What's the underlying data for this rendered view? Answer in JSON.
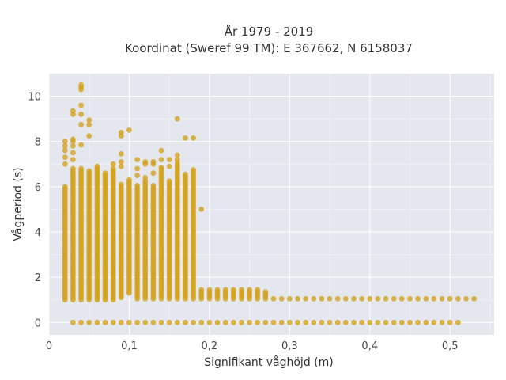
{
  "chart_data": {
    "type": "scatter",
    "title_line1": "År 1979 - 2019",
    "title_line2": "Koordinat (Sweref 99 TM): E 367662, N 6158037",
    "xlabel": "Signifikant våghöjd (m)",
    "ylabel": "Vågperiod (s)",
    "xlim": [
      0,
      0.555
    ],
    "ylim": [
      -0.55,
      11.0
    ],
    "grid": true,
    "x_ticks": [
      0,
      0.1,
      0.2,
      0.3,
      0.4,
      0.5
    ],
    "x_tick_labels": [
      "0",
      "0,1",
      "0,2",
      "0,3",
      "0,4",
      "0,5"
    ],
    "y_ticks": [
      0,
      2,
      4,
      6,
      8,
      10
    ],
    "y_tick_labels": [
      "0",
      "2",
      "4",
      "6",
      "8",
      "10"
    ],
    "marker_color": "#d4a017",
    "background_color": "#e5e7ef",
    "columns": [
      {
        "x": 0.02,
        "y_min": 1.0,
        "y_max": 6.0,
        "outliers": [
          7.0,
          7.3,
          7.6,
          7.8,
          8.0
        ]
      },
      {
        "x": 0.03,
        "y_min": 1.0,
        "y_max": 6.8,
        "outliers": [
          7.2,
          7.5,
          7.8,
          8.0,
          8.1,
          9.2,
          9.35
        ]
      },
      {
        "x": 0.04,
        "y_min": 1.0,
        "y_max": 6.8,
        "outliers": [
          7.85,
          8.75,
          9.2,
          9.6,
          10.3,
          10.4,
          10.5
        ]
      },
      {
        "x": 0.05,
        "y_min": 1.0,
        "y_max": 6.7,
        "outliers": [
          8.25,
          8.75,
          8.95
        ]
      },
      {
        "x": 0.06,
        "y_min": 1.0,
        "y_max": 6.9,
        "outliers": []
      },
      {
        "x": 0.07,
        "y_min": 1.0,
        "y_max": 6.6,
        "outliers": []
      },
      {
        "x": 0.08,
        "y_min": 1.0,
        "y_max": 6.8,
        "outliers": [
          7.0
        ]
      },
      {
        "x": 0.09,
        "y_min": 1.1,
        "y_max": 6.1,
        "outliers": [
          6.9,
          7.1,
          7.45,
          8.25,
          8.4
        ]
      },
      {
        "x": 0.1,
        "y_min": 1.3,
        "y_max": 6.3,
        "outliers": [
          8.5
        ]
      },
      {
        "x": 0.11,
        "y_min": 1.05,
        "y_max": 6.1,
        "outliers": [
          6.5,
          6.8,
          7.2
        ]
      },
      {
        "x": 0.12,
        "y_min": 1.05,
        "y_max": 6.2,
        "outliers": [
          6.4,
          7.0,
          7.1
        ]
      },
      {
        "x": 0.13,
        "y_min": 1.05,
        "y_max": 6.1,
        "outliers": [
          6.6,
          7.0,
          7.1
        ]
      },
      {
        "x": 0.14,
        "y_min": 1.05,
        "y_max": 6.8,
        "outliers": [
          7.2,
          7.6
        ]
      },
      {
        "x": 0.15,
        "y_min": 1.05,
        "y_max": 6.2,
        "outliers": [
          6.9,
          7.2
        ]
      },
      {
        "x": 0.16,
        "y_min": 1.05,
        "y_max": 7.0,
        "outliers": [
          7.2,
          7.4,
          9.0
        ]
      },
      {
        "x": 0.17,
        "y_min": 1.05,
        "y_max": 6.6,
        "outliers": [
          8.15
        ]
      },
      {
        "x": 0.18,
        "y_min": 1.05,
        "y_max": 6.7,
        "outliers": [
          8.15
        ]
      },
      {
        "x": 0.19,
        "y_min": 1.05,
        "y_max": 1.5,
        "outliers": [
          5.0
        ]
      },
      {
        "x": 0.2,
        "y_min": 1.05,
        "y_max": 1.5,
        "outliers": []
      },
      {
        "x": 0.21,
        "y_min": 1.05,
        "y_max": 1.5,
        "outliers": []
      },
      {
        "x": 0.22,
        "y_min": 1.05,
        "y_max": 1.5,
        "outliers": []
      },
      {
        "x": 0.23,
        "y_min": 1.05,
        "y_max": 1.5,
        "outliers": []
      },
      {
        "x": 0.24,
        "y_min": 1.05,
        "y_max": 1.5,
        "outliers": []
      },
      {
        "x": 0.25,
        "y_min": 1.05,
        "y_max": 1.5,
        "outliers": []
      },
      {
        "x": 0.26,
        "y_min": 1.05,
        "y_max": 1.5,
        "outliers": []
      },
      {
        "x": 0.27,
        "y_min": 1.05,
        "y_max": 1.3,
        "outliers": []
      },
      {
        "x": 0.28,
        "y_min": 1.05,
        "y_max": 1.05,
        "outliers": []
      },
      {
        "x": 0.29,
        "y_min": 1.05,
        "y_max": 1.05,
        "outliers": []
      },
      {
        "x": 0.3,
        "y_min": 1.05,
        "y_max": 1.05,
        "outliers": []
      },
      {
        "x": 0.31,
        "y_min": 1.05,
        "y_max": 1.05,
        "outliers": []
      },
      {
        "x": 0.32,
        "y_min": 1.05,
        "y_max": 1.05,
        "outliers": []
      },
      {
        "x": 0.33,
        "y_min": 1.05,
        "y_max": 1.05,
        "outliers": []
      },
      {
        "x": 0.34,
        "y_min": 1.05,
        "y_max": 1.05,
        "outliers": []
      },
      {
        "x": 0.35,
        "y_min": 1.05,
        "y_max": 1.05,
        "outliers": []
      },
      {
        "x": 0.36,
        "y_min": 1.05,
        "y_max": 1.05,
        "outliers": []
      },
      {
        "x": 0.37,
        "y_min": 1.05,
        "y_max": 1.05,
        "outliers": []
      },
      {
        "x": 0.38,
        "y_min": 1.05,
        "y_max": 1.05,
        "outliers": []
      },
      {
        "x": 0.39,
        "y_min": 1.05,
        "y_max": 1.05,
        "outliers": []
      },
      {
        "x": 0.4,
        "y_min": 1.05,
        "y_max": 1.05,
        "outliers": []
      },
      {
        "x": 0.41,
        "y_min": 1.05,
        "y_max": 1.05,
        "outliers": []
      },
      {
        "x": 0.42,
        "y_min": 1.05,
        "y_max": 1.05,
        "outliers": []
      },
      {
        "x": 0.43,
        "y_min": 1.05,
        "y_max": 1.05,
        "outliers": []
      },
      {
        "x": 0.44,
        "y_min": 1.05,
        "y_max": 1.05,
        "outliers": []
      },
      {
        "x": 0.45,
        "y_min": 1.05,
        "y_max": 1.05,
        "outliers": []
      },
      {
        "x": 0.46,
        "y_min": 1.05,
        "y_max": 1.05,
        "outliers": []
      },
      {
        "x": 0.47,
        "y_min": 1.05,
        "y_max": 1.05,
        "outliers": []
      },
      {
        "x": 0.48,
        "y_min": 1.05,
        "y_max": 1.05,
        "outliers": []
      },
      {
        "x": 0.49,
        "y_min": 1.05,
        "y_max": 1.05,
        "outliers": []
      },
      {
        "x": 0.5,
        "y_min": 1.05,
        "y_max": 1.05,
        "outliers": []
      },
      {
        "x": 0.51,
        "y_min": 1.05,
        "y_max": 1.05,
        "outliers": []
      },
      {
        "x": 0.52,
        "y_min": 1.05,
        "y_max": 1.05,
        "outliers": []
      },
      {
        "x": 0.53,
        "y_min": 1.05,
        "y_max": 1.05,
        "outliers": []
      }
    ],
    "zero_row": {
      "y": 0,
      "x_values": [
        0.03,
        0.04,
        0.05,
        0.06,
        0.07,
        0.08,
        0.09,
        0.1,
        0.11,
        0.12,
        0.13,
        0.14,
        0.15,
        0.16,
        0.17,
        0.18,
        0.19,
        0.2,
        0.21,
        0.22,
        0.23,
        0.24,
        0.25,
        0.26,
        0.27,
        0.28,
        0.29,
        0.3,
        0.31,
        0.32,
        0.33,
        0.34,
        0.35,
        0.36,
        0.37,
        0.38,
        0.39,
        0.4,
        0.41,
        0.42,
        0.43,
        0.44,
        0.45,
        0.46,
        0.47,
        0.48,
        0.49,
        0.5,
        0.51
      ]
    }
  }
}
